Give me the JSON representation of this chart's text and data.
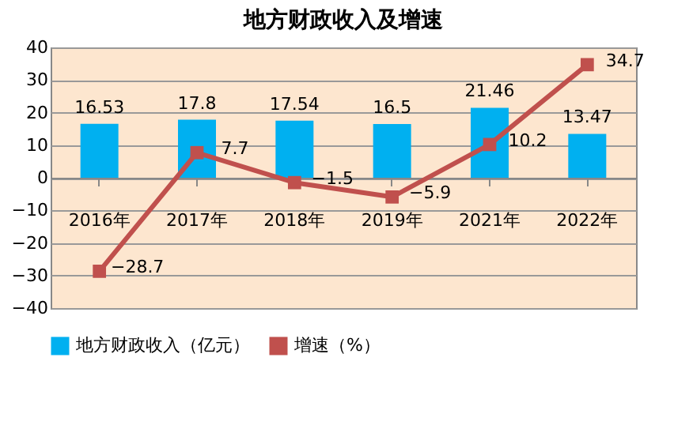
{
  "chart_data": {
    "type": "bar",
    "title": "地方财政收入及增速",
    "categories": [
      "2016年",
      "2017年",
      "2018年",
      "2019年",
      "2021年",
      "2022年"
    ],
    "series": [
      {
        "name": "地方财政收入（亿元）",
        "type": "bar",
        "color": "#00b0f0",
        "values": [
          16.53,
          17.8,
          17.54,
          16.5,
          21.46,
          13.47
        ]
      },
      {
        "name": "增速（%）",
        "type": "line",
        "color": "#c0504d",
        "marker": "square",
        "values": [
          -28.7,
          7.7,
          -1.5,
          -5.9,
          10.2,
          34.7
        ]
      }
    ],
    "ylim": [
      -40,
      40
    ],
    "yticks": [
      -40,
      -30,
      -20,
      -10,
      0,
      10,
      20,
      30,
      40
    ],
    "grid": "y",
    "legend": "bottom",
    "data_labels": true
  }
}
